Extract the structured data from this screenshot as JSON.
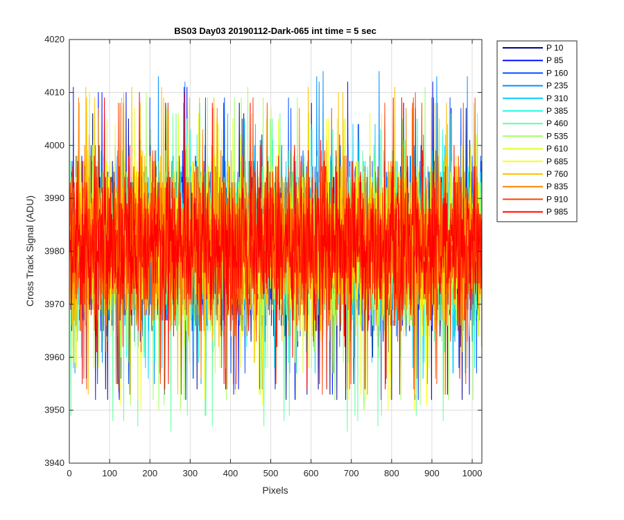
{
  "chart_data": {
    "type": "line",
    "title": "BS03 Day03 20190112-Dark-065 int time = 5 sec",
    "xlabel": "Pixels",
    "ylabel": "Cross Track Signal (ADU)",
    "xlim": [
      0,
      1024
    ],
    "ylim": [
      3940,
      4020
    ],
    "x_ticks": [
      0,
      100,
      200,
      300,
      400,
      500,
      600,
      700,
      800,
      900,
      1000
    ],
    "y_ticks": [
      3940,
      3950,
      3960,
      3970,
      3980,
      3990,
      4000,
      4010,
      4020
    ],
    "grid": true,
    "legend_position": "outside-top-right",
    "series_generation": {
      "points_per_series": 1024,
      "mean": 3981,
      "spread": 16,
      "note_seed_base": 17
    },
    "series": [
      {
        "name": "P 10",
        "color": "#00008F",
        "mean": 3981,
        "min": 3951,
        "max": 4008
      },
      {
        "name": "P 85",
        "color": "#0010FF",
        "mean": 3981,
        "min": 3952,
        "max": 4012
      },
      {
        "name": "P 160",
        "color": "#0050FF",
        "mean": 3981,
        "min": 3955,
        "max": 4010
      },
      {
        "name": "P 235",
        "color": "#0090FF",
        "mean": 3981,
        "min": 3955,
        "max": 4015
      },
      {
        "name": "P 310",
        "color": "#00CFFF",
        "mean": 3981,
        "min": 3956,
        "max": 4006
      },
      {
        "name": "P 385",
        "color": "#1FFFDF",
        "mean": 3981,
        "min": 3958,
        "max": 4005
      },
      {
        "name": "P 460",
        "color": "#5FFF9F",
        "mean": 3981,
        "min": 3946,
        "max": 4008
      },
      {
        "name": "P 535",
        "color": "#9FFF5F",
        "mean": 3981,
        "min": 3950,
        "max": 4011
      },
      {
        "name": "P 610",
        "color": "#DFFF1F",
        "mean": 3981,
        "min": 3957,
        "max": 4007
      },
      {
        "name": "P 685",
        "color": "#FFFF00",
        "mean": 3981,
        "min": 3950,
        "max": 4006
      },
      {
        "name": "P 760",
        "color": "#FFC000",
        "mean": 3981,
        "min": 3951,
        "max": 4011
      },
      {
        "name": "P 835",
        "color": "#FF8000",
        "mean": 3981,
        "min": 3953,
        "max": 4009
      },
      {
        "name": "P 910",
        "color": "#FF4000",
        "mean": 3981,
        "min": 3953,
        "max": 4010
      },
      {
        "name": "P 985",
        "color": "#FF0000",
        "mean": 3981,
        "min": 3953,
        "max": 4010
      }
    ]
  }
}
